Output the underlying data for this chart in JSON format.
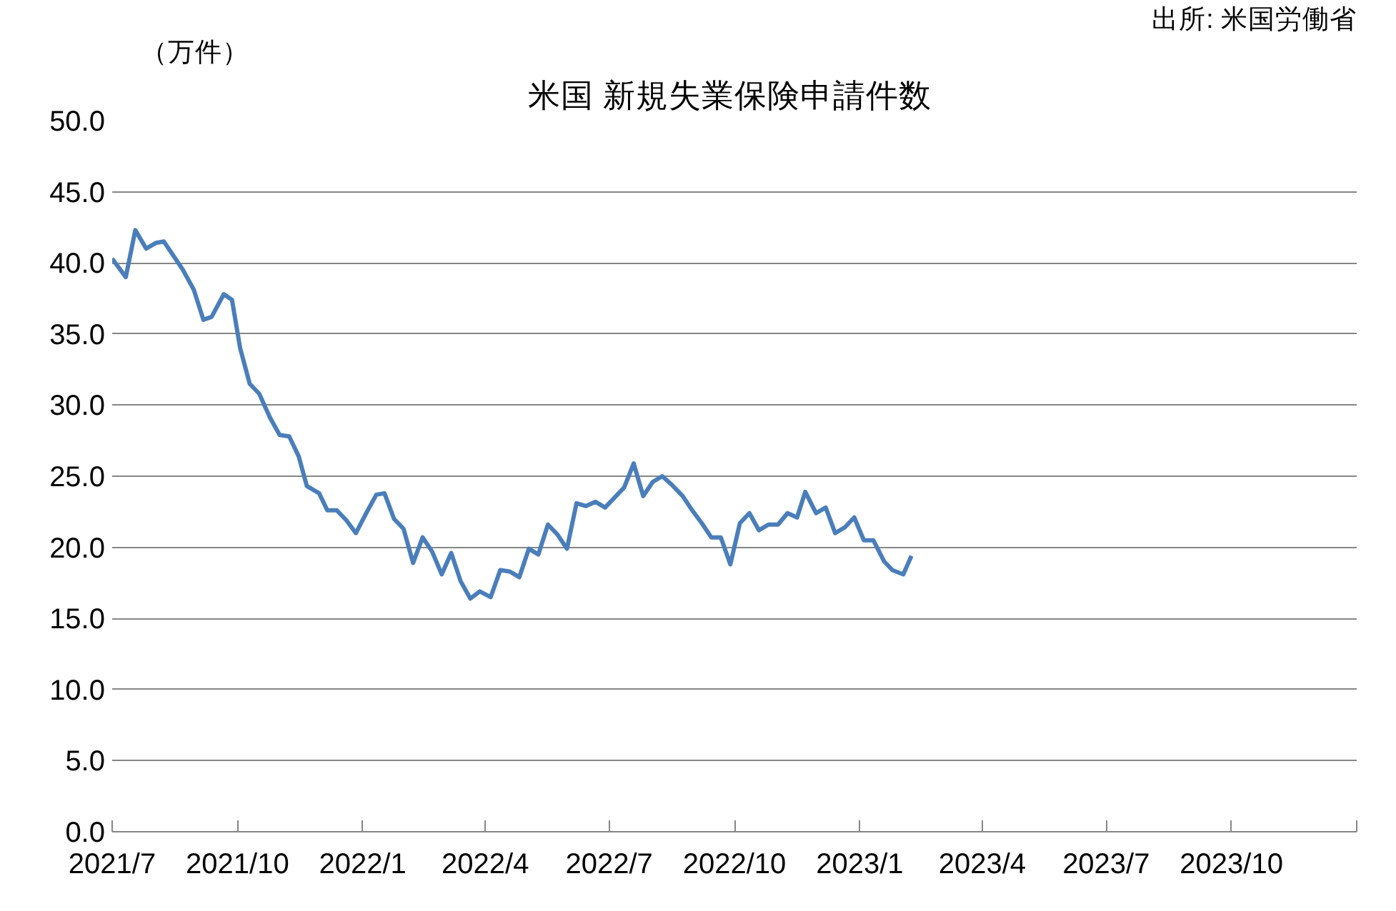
{
  "chart_data": {
    "type": "line",
    "title": "米国  新規失業保険申請件数",
    "annotations": [
      "（万件）",
      "出所: 米国労働省"
    ],
    "x": [
      "2021-07-01",
      "2021-07-11",
      "2021-07-18",
      "2021-07-26",
      "2021-08-02",
      "2021-08-08",
      "2021-08-22",
      "2021-08-30",
      "2021-09-06",
      "2021-09-12",
      "2021-09-21",
      "2021-09-27",
      "2021-10-03",
      "2021-10-10",
      "2021-10-17",
      "2021-10-25",
      "2021-11-01",
      "2021-11-08",
      "2021-11-15",
      "2021-11-21",
      "2021-11-30",
      "2021-12-06",
      "2021-12-13",
      "2021-12-20",
      "2021-12-27",
      "2022-01-03",
      "2022-01-11",
      "2022-01-17",
      "2022-01-24",
      "2022-01-31",
      "2022-02-07",
      "2022-02-14",
      "2022-02-21",
      "2022-02-28",
      "2022-03-07",
      "2022-03-14",
      "2022-03-21",
      "2022-03-28",
      "2022-04-05",
      "2022-04-12",
      "2022-04-19",
      "2022-04-26",
      "2022-05-03",
      "2022-05-10",
      "2022-05-17",
      "2022-05-24",
      "2022-05-31",
      "2022-06-07",
      "2022-06-14",
      "2022-06-21",
      "2022-06-28",
      "2022-07-05",
      "2022-07-12",
      "2022-07-19",
      "2022-07-26",
      "2022-08-02",
      "2022-08-09",
      "2022-08-16",
      "2022-08-24",
      "2022-08-31",
      "2022-09-07",
      "2022-09-14",
      "2022-09-21",
      "2022-09-28",
      "2022-10-05",
      "2022-10-12",
      "2022-10-19",
      "2022-10-26",
      "2022-11-02",
      "2022-11-09",
      "2022-11-16",
      "2022-11-22",
      "2022-11-30",
      "2022-12-07",
      "2022-12-14",
      "2022-12-21",
      "2022-12-28",
      "2023-01-04",
      "2023-01-11",
      "2023-01-19",
      "2023-01-25",
      "2023-02-02",
      "2023-02-08"
    ],
    "series": [
      {
        "color": "#4a7ebb",
        "values": [
          40.3,
          39.0,
          42.3,
          41.0,
          41.4,
          41.5,
          39.5,
          38.1,
          36.0,
          36.2,
          37.8,
          37.4,
          34.0,
          31.5,
          30.8,
          29.1,
          27.9,
          27.8,
          26.4,
          24.3,
          23.8,
          22.6,
          22.6,
          21.9,
          21.0,
          22.3,
          23.7,
          23.8,
          22.0,
          21.3,
          18.9,
          20.7,
          19.7,
          18.1,
          19.6,
          17.6,
          16.4,
          16.9,
          16.5,
          18.4,
          18.3,
          17.9,
          19.9,
          19.5,
          21.6,
          20.9,
          19.9,
          23.1,
          22.9,
          23.2,
          22.8,
          23.5,
          24.2,
          25.9,
          23.6,
          24.6,
          25.0,
          24.4,
          23.6,
          22.6,
          21.7,
          20.7,
          20.7,
          18.8,
          21.7,
          22.4,
          21.2,
          21.6,
          21.6,
          22.4,
          22.1,
          23.9,
          22.4,
          22.8,
          21.0,
          21.4,
          22.1,
          20.5,
          20.5,
          19.0,
          18.4,
          18.1,
          19.4
        ]
      }
    ],
    "xlim": [
      "2021-07-01",
      "2024-01-01"
    ],
    "xticks": [
      {
        "value": "2021-07-01",
        "label": "2021/7"
      },
      {
        "value": "2021-10-01",
        "label": "2021/10"
      },
      {
        "value": "2022-01-01",
        "label": "2022/1"
      },
      {
        "value": "2022-04-01",
        "label": "2022/4"
      },
      {
        "value": "2022-07-01",
        "label": "2022/7"
      },
      {
        "value": "2022-10-01",
        "label": "2022/10"
      },
      {
        "value": "2023-01-01",
        "label": "2023/1"
      },
      {
        "value": "2023-04-01",
        "label": "2023/4"
      },
      {
        "value": "2023-07-01",
        "label": "2023/7"
      },
      {
        "value": "2023-10-01",
        "label": "2023/10"
      },
      {
        "value": "2024-01-01",
        "label": null
      }
    ],
    "ylim": [
      0,
      50
    ],
    "yticks": [
      {
        "value": 0,
        "label": "0.0"
      },
      {
        "value": 5,
        "label": "5.0"
      },
      {
        "value": 10,
        "label": "10.0"
      },
      {
        "value": 15,
        "label": "15.0"
      },
      {
        "value": 20,
        "label": "20.0"
      },
      {
        "value": 25,
        "label": "25.0"
      },
      {
        "value": 30,
        "label": "30.0"
      },
      {
        "value": 35,
        "label": "35.0"
      },
      {
        "value": 40,
        "label": "40.0"
      },
      {
        "value": 45,
        "label": "45.0"
      },
      {
        "value": 50,
        "label": "50.0"
      }
    ],
    "grid": "y",
    "marker": "none",
    "line_style": "solid"
  }
}
